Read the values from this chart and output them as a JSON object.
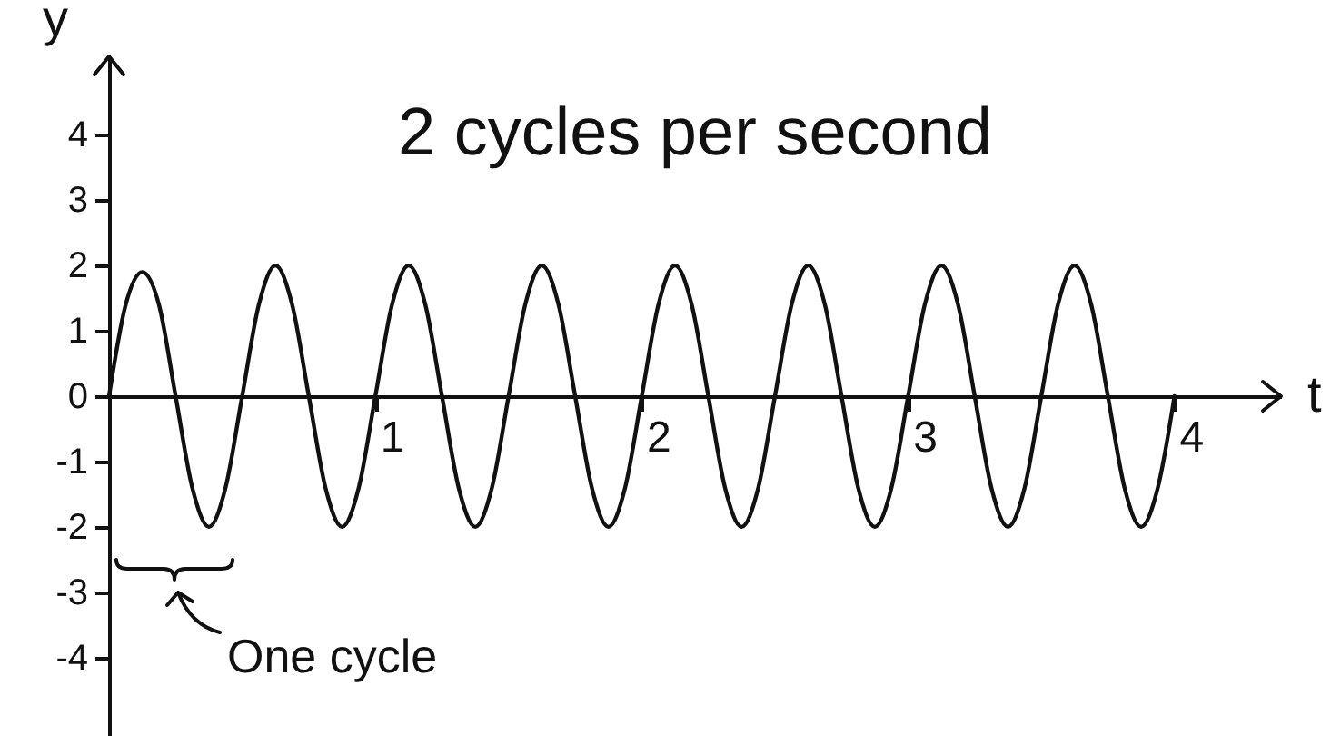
{
  "chart_data": {
    "type": "line",
    "title": "2 cycles per second",
    "xlabel": "t",
    "ylabel": "y",
    "x": [
      0,
      0.0625,
      0.125,
      0.1875,
      0.25,
      0.3125,
      0.375,
      0.4375,
      0.5,
      0.5625,
      0.625,
      0.6875,
      0.75,
      0.8125,
      0.875,
      0.9375,
      1,
      1.0625,
      1.125,
      1.1875,
      1.25,
      1.3125,
      1.375,
      1.4375,
      1.5,
      1.5625,
      1.625,
      1.6875,
      1.75,
      1.8125,
      1.875,
      1.9375,
      2,
      2.0625,
      2.125,
      2.1875,
      2.25,
      2.3125,
      2.375,
      2.4375,
      2.5,
      2.5625,
      2.625,
      2.6875,
      2.75,
      2.8125,
      2.875,
      2.9375,
      3,
      3.0625,
      3.125,
      3.1875,
      3.25,
      3.3125,
      3.375,
      3.4375,
      3.5,
      3.5625,
      3.625,
      3.6875,
      3.75,
      3.8125,
      3.875,
      3.9375,
      4
    ],
    "series": [
      {
        "color": "#111111",
        "values": [
          0,
          1.4,
          1.9,
          1.4,
          0,
          -1.4,
          -2,
          -1.4,
          0,
          1.4,
          2,
          1.4,
          0,
          -1.4,
          -2,
          -1.4,
          0,
          1.4,
          2,
          1.4,
          0,
          -1.4,
          -2,
          -1.4,
          0,
          1.4,
          2,
          1.4,
          0,
          -1.4,
          -2,
          -1.4,
          0,
          1.4,
          2,
          1.4,
          0,
          -1.4,
          -2,
          -1.4,
          0,
          1.4,
          2,
          1.4,
          0,
          -1.4,
          -2,
          -1.4,
          0,
          1.4,
          2,
          1.4,
          0,
          -1.4,
          -2,
          -1.4,
          0,
          1.4,
          2,
          1.4,
          0,
          -1.4,
          -2,
          -1.4,
          0
        ]
      }
    ],
    "xlim": [
      0,
      4.4
    ],
    "ylim": [
      -5.2,
      5.2
    ],
    "xticks": [
      1,
      2,
      3,
      4
    ],
    "yticks": [
      -4,
      -3,
      -2,
      -1,
      0,
      1,
      2,
      3,
      4
    ],
    "grid": false,
    "marker": "none",
    "line_style": "solid",
    "annotations": [
      "One cycle"
    ]
  }
}
